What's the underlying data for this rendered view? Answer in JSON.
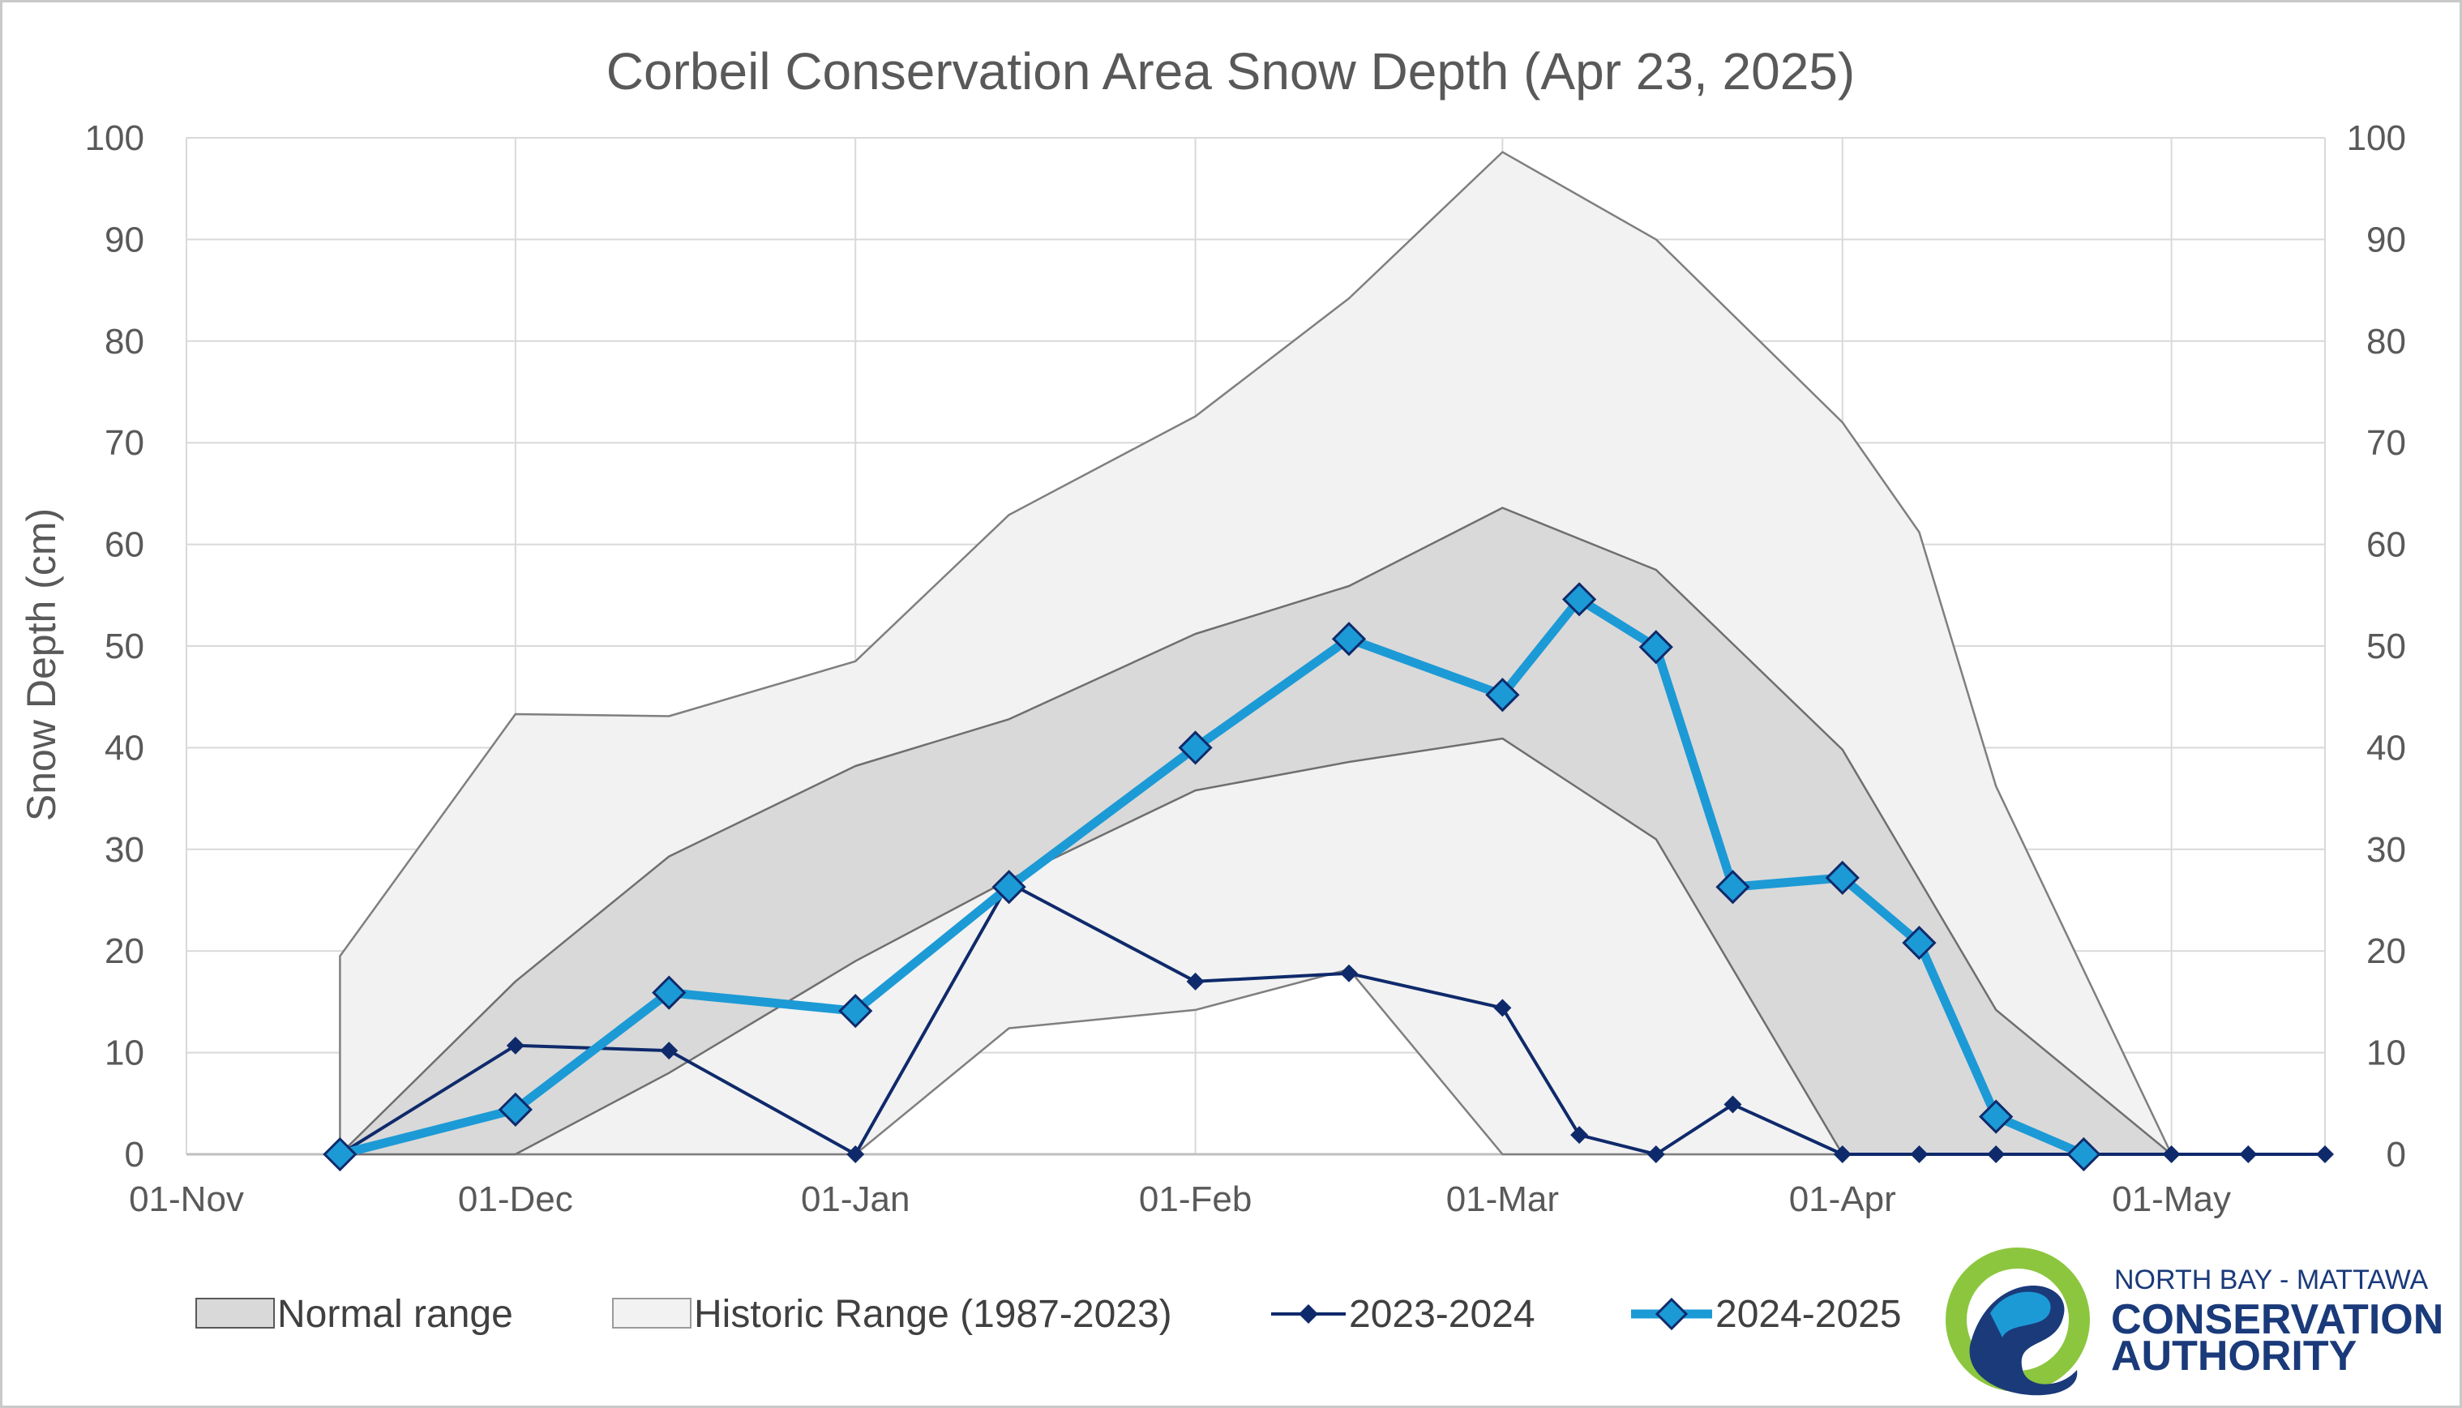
{
  "chart_data": {
    "type": "area",
    "title": "Corbeil Conservation Area Snow Depth (Apr 23, 2025)",
    "ylabel": "Snow Depth (cm)",
    "ylim": [
      0,
      100
    ],
    "yticks": [
      "0",
      "10",
      "20",
      "30",
      "40",
      "50",
      "60",
      "70",
      "80",
      "90",
      "100"
    ],
    "xlim": [
      "2024-11-01",
      "2025-05-15"
    ],
    "xticks": [
      {
        "date": "2024-11-01",
        "label": "01-Nov"
      },
      {
        "date": "2024-12-01",
        "label": "01-Dec"
      },
      {
        "date": "2025-01-01",
        "label": "01-Jan"
      },
      {
        "date": "2025-02-01",
        "label": "01-Feb"
      },
      {
        "date": "2025-03-01",
        "label": "01-Mar"
      },
      {
        "date": "2025-04-01",
        "label": "01-Apr"
      },
      {
        "date": "2025-05-01",
        "label": "01-May"
      }
    ],
    "grid": true,
    "secondary_y_axis": true,
    "legend_position": "bottom",
    "historic_range": {
      "name": "Historic Range (1987-2023)",
      "color": "#f2f2f2",
      "x": [
        "2024-11-15",
        "2024-12-01",
        "2024-12-15",
        "2025-01-01",
        "2025-01-15",
        "2025-02-01",
        "2025-02-15",
        "2025-03-01",
        "2025-03-15",
        "2025-04-01",
        "2025-04-08",
        "2025-04-15",
        "2025-05-01"
      ],
      "upper": [
        19.5,
        43.3,
        43.1,
        48.5,
        62.9,
        72.6,
        84.2,
        98.6,
        90.0,
        72.0,
        61.2,
        36.2,
        0
      ],
      "lower": [
        0,
        0,
        0,
        0,
        12.4,
        14.2,
        18.2,
        0,
        0,
        0,
        0,
        0,
        0
      ]
    },
    "normal_range": {
      "name": "Normal range",
      "color": "#d9d9d9",
      "x": [
        "2024-11-15",
        "2024-12-01",
        "2024-12-15",
        "2025-01-01",
        "2025-01-15",
        "2025-02-01",
        "2025-02-15",
        "2025-03-01",
        "2025-03-15",
        "2025-04-01",
        "2025-04-15",
        "2025-05-01"
      ],
      "upper": [
        0,
        17.0,
        29.3,
        38.2,
        42.8,
        51.2,
        55.9,
        63.6,
        57.5,
        39.8,
        14.2,
        0
      ],
      "lower": [
        0,
        0,
        8.0,
        19.0,
        27.0,
        35.8,
        38.6,
        40.9,
        31.0,
        0,
        0,
        0
      ]
    },
    "series": [
      {
        "name": "2023-2024",
        "color": "#0f2a6b",
        "x": [
          "2024-11-15",
          "2024-12-01",
          "2024-12-15",
          "2025-01-01",
          "2025-01-15",
          "2025-02-01",
          "2025-02-15",
          "2025-03-01",
          "2025-03-08",
          "2025-03-15",
          "2025-03-22",
          "2025-04-01",
          "2025-04-08",
          "2025-04-15",
          "2025-04-23",
          "2025-05-01",
          "2025-05-08",
          "2025-05-15"
        ],
        "values": [
          0,
          10.7,
          10.2,
          0,
          26.7,
          17.0,
          17.8,
          14.4,
          1.9,
          0,
          4.9,
          0,
          0,
          0,
          0,
          0,
          0,
          0
        ]
      },
      {
        "name": "2024-2025",
        "color": "#1c9ad6",
        "x": [
          "2024-11-15",
          "2024-12-01",
          "2024-12-15",
          "2025-01-01",
          "2025-01-15",
          "2025-02-01",
          "2025-02-15",
          "2025-03-01",
          "2025-03-08",
          "2025-03-15",
          "2025-03-22",
          "2025-04-01",
          "2025-04-08",
          "2025-04-15",
          "2025-04-23"
        ],
        "values": [
          0,
          4.4,
          15.9,
          14.1,
          26.3,
          40.0,
          50.7,
          45.2,
          54.6,
          49.9,
          26.3,
          27.2,
          20.8,
          3.7,
          0
        ]
      }
    ]
  },
  "legend": {
    "normal_range": "Normal range",
    "historic_range": "Historic Range (1987-2023)",
    "series_2023": "2023-2024",
    "series_2024": "2024-2025"
  },
  "logo": {
    "line1": "NORTH BAY - MATTAWA",
    "line2": "CONSERVATION",
    "line3": "AUTHORITY",
    "colors": {
      "green": "#8cc63f",
      "navy": "#1a3a7a",
      "blue": "#1c9ad6"
    }
  }
}
